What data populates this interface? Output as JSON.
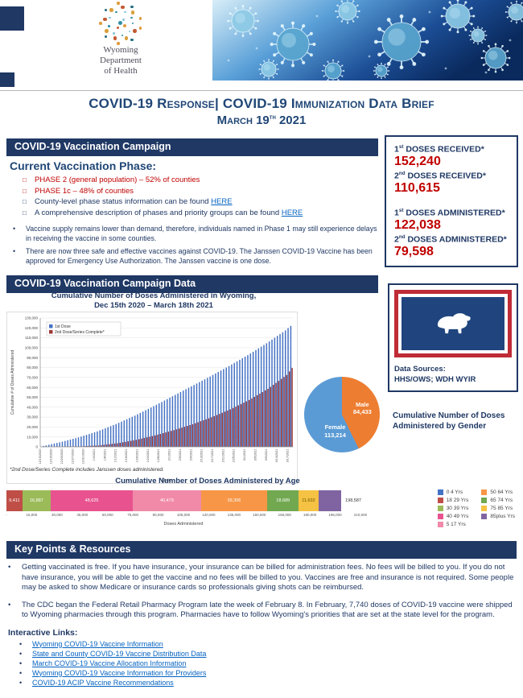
{
  "banner": {
    "org_lines": [
      "Wyoming",
      "Department",
      "of Health"
    ]
  },
  "title": {
    "line1": "COVID-19 Response| COVID-19 Immunization Data Brief",
    "date_parts": [
      {
        "t": "March 19",
        "sup": false
      },
      {
        "t": "th",
        "sup": true
      },
      {
        "t": " 2021",
        "sup": false
      }
    ]
  },
  "campaign": {
    "header": "COVID-19 Vaccination Campaign",
    "phase_heading": "Current Vaccination Phase:",
    "phase_items": [
      {
        "text": "PHASE 2 (general population) – 52% of counties",
        "style": "red",
        "link": ""
      },
      {
        "text": "PHASE 1c – 48% of counties",
        "style": "red",
        "link": ""
      },
      {
        "text": "County-level phase status information can be found ",
        "style": "navy",
        "link": "HERE"
      },
      {
        "text": "A comprehensive description of phases and priority groups can be found ",
        "style": "navy",
        "link": "HERE"
      }
    ],
    "bullets": [
      "Vaccine supply remains lower than demand, therefore, individuals named in Phase 1 may still experience delays in receiving the vaccine in some counties.",
      "There are now three safe and effective vaccines against COVID-19.  The Janssen COVID-19 Vaccine has been approved for Emergency Use Authorization.  The Janssen vaccine is one dose."
    ]
  },
  "stats": {
    "items": [
      {
        "num": "1",
        "ord": "st",
        "label": "DOSES RECEIVED*",
        "value": "152,240"
      },
      {
        "num": "2",
        "ord": "nd",
        "label": "DOSES RECEIVED*",
        "value": "110,615"
      },
      {
        "num": "1",
        "ord": "st",
        "label": "DOSES ADMINISTERED*",
        "value": "122,038"
      },
      {
        "num": "2",
        "ord": "nd",
        "label": "DOSES ADMINISTERED*",
        "value": "79,598"
      }
    ]
  },
  "data_section": {
    "header": "COVID-19 Vaccination Campaign Data",
    "footnote": "*2nd Dose/Series Complete includes Janssen doses administered.",
    "data_sources_label": "Data Sources:",
    "data_sources_value": "HHS/OWS; WDH WYIR",
    "gender_caption": "Cumulative Number of Doses Administered by Gender"
  },
  "chart_data": [
    {
      "type": "bar",
      "title": "Cumulative Number of Doses Administered in Wyoming,",
      "subtitle": "Dec 15th 2020 – March 18th 2021",
      "xlabel": "Date",
      "ylabel": "Cumulative # of Doses Administered",
      "ylim": [
        0,
        130000
      ],
      "y_tick_step": 10000,
      "legend": [
        "1st Dose",
        "2nd Dose/Series Complete*"
      ],
      "colors": [
        "#4472c4",
        "#9e3a38"
      ],
      "start_date": "12/15/2020",
      "end_date": "3/18/2021",
      "num_days": 94,
      "anchors": [
        {
          "day": 0,
          "first": 300,
          "second": 0
        },
        {
          "day": 7,
          "first": 4500,
          "second": 100
        },
        {
          "day": 14,
          "first": 9500,
          "second": 400
        },
        {
          "day": 21,
          "first": 15500,
          "second": 1300
        },
        {
          "day": 28,
          "first": 23000,
          "second": 3600
        },
        {
          "day": 35,
          "first": 31500,
          "second": 7000
        },
        {
          "day": 42,
          "first": 41000,
          "second": 11500
        },
        {
          "day": 49,
          "first": 51000,
          "second": 16800
        },
        {
          "day": 56,
          "first": 61000,
          "second": 22800
        },
        {
          "day": 63,
          "first": 71000,
          "second": 29800
        },
        {
          "day": 70,
          "first": 81500,
          "second": 37800
        },
        {
          "day": 77,
          "first": 92500,
          "second": 47200
        },
        {
          "day": 84,
          "first": 104500,
          "second": 58500
        },
        {
          "day": 91,
          "first": 117500,
          "second": 72500
        },
        {
          "day": 93,
          "first": 122038,
          "second": 79598
        }
      ]
    },
    {
      "type": "pie",
      "title": "Cumulative Number of Doses Administered by Gender",
      "slices": [
        {
          "label": "Male",
          "display": "84,433",
          "value": 84433,
          "color": "#ed7d31"
        },
        {
          "label": "Female",
          "display": "113,214",
          "value": 113214,
          "color": "#5b9bd5"
        }
      ]
    },
    {
      "type": "bar",
      "title": "Cumulative Number of Doses Administered by Age",
      "xlabel": "Doses Administered",
      "xlim": [
        0,
        210000
      ],
      "x_ticks": [
        "-",
        "15,000",
        "30,000",
        "45,000",
        "60,000",
        "75,000",
        "90,000",
        "105,000",
        "120,000",
        "135,000",
        "150,000",
        "165,000",
        "180,000",
        "195,000",
        "210,000"
      ],
      "total_label": "198,587",
      "segments": [
        {
          "display": "9,411",
          "value": 9411,
          "color": "#bf4e47",
          "text": "#ffffff"
        },
        {
          "display": "16,887",
          "value": 16887,
          "color": "#9bbb59",
          "text": "#ffffff"
        },
        {
          "display": "48,625",
          "value": 48625,
          "color": "#e8538f",
          "text": "#ffffff"
        },
        {
          "display": "40,479",
          "value": 40479,
          "color": "#f08aa8",
          "text": "#ffffff"
        },
        {
          "display": "39,306",
          "value": 39306,
          "color": "#f79646",
          "text": "#ffffff"
        },
        {
          "display": "18,689",
          "value": 18689,
          "color": "#71a850",
          "text": "#ffffff"
        },
        {
          "display": "11,632",
          "value": 11632,
          "color": "#f5c243",
          "text": "#6b5400"
        },
        {
          "display": "",
          "value": 13558,
          "color": "#8064a2",
          "text": "#ffffff"
        }
      ],
      "legend": [
        {
          "label": "0 4 Yrs",
          "color": "#4472c4"
        },
        {
          "label": "18 29 Yrs",
          "color": "#bf4e47"
        },
        {
          "label": "30 39 Yrs",
          "color": "#9bbb59"
        },
        {
          "label": "40 49 Yrs",
          "color": "#e8538f"
        },
        {
          "label": "5 17 Yrs",
          "color": "#f08aa8"
        },
        {
          "label": "50 64 Yrs",
          "color": "#f79646"
        },
        {
          "label": "65 74 Yrs",
          "color": "#71a850"
        },
        {
          "label": "75 85 Yrs",
          "color": "#f5c243"
        },
        {
          "label": "85plus Yrs",
          "color": "#8064a2"
        }
      ]
    }
  ],
  "key_points": {
    "header": "Key Points & Resources",
    "bullets": [
      "Getting vaccinated is free. If you have insurance, your insurance can be billed for administration fees. No fees will be billed to you.  If you do not have insurance, you will be able to get the vaccine and no fees will be billed to you.  Vaccines are free and insurance is not required. Some people may be asked to show Medicare or insurance cards so professionals giving shots can be reimbursed.",
      "The CDC began the Federal Retail Pharmacy Program late the week of February 8.  In February, 7,740 doses of COVID-19 vaccine were shipped to Wyoming pharmacies through this program.  Pharmacies have to follow Wyoming's priorities that are set at the state level for the program."
    ],
    "links_heading": "Interactive Links:",
    "links": [
      "Wyoming COVID-19 Vaccine Information",
      "State and County COVID-19 Vaccine Distribution Data",
      "March COVID-19 Vaccine Allocation Information",
      "Wyoming COVID-19 Vaccine Information for Providers",
      "COVID-19 ACIP Vaccine Recommendations"
    ]
  }
}
